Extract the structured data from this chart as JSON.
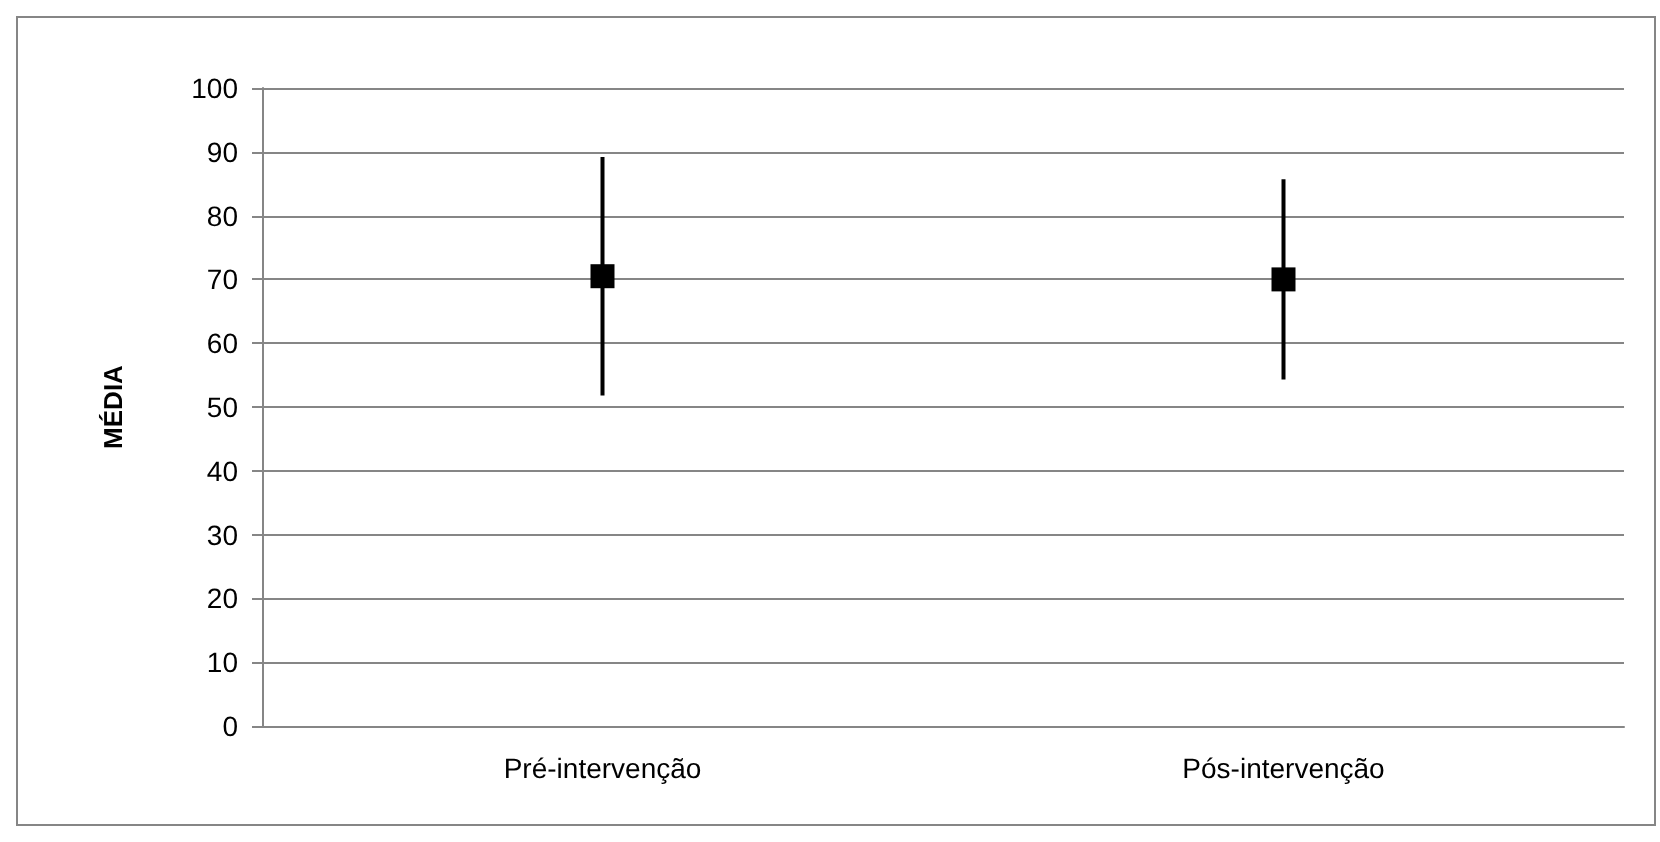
{
  "chart_data": {
    "type": "scatter",
    "ylabel": "MÉDIA",
    "categories": [
      "Pré-intervenção",
      "Pós-intervenção"
    ],
    "values": [
      70.5,
      70
    ],
    "errors": [
      18.7,
      15.7
    ],
    "color": "#000000",
    "marker": "square",
    "ylim": [
      0,
      100
    ],
    "yticks": [
      0,
      10,
      20,
      30,
      40,
      50,
      60,
      70,
      80,
      90,
      100
    ],
    "grid": "y"
  }
}
